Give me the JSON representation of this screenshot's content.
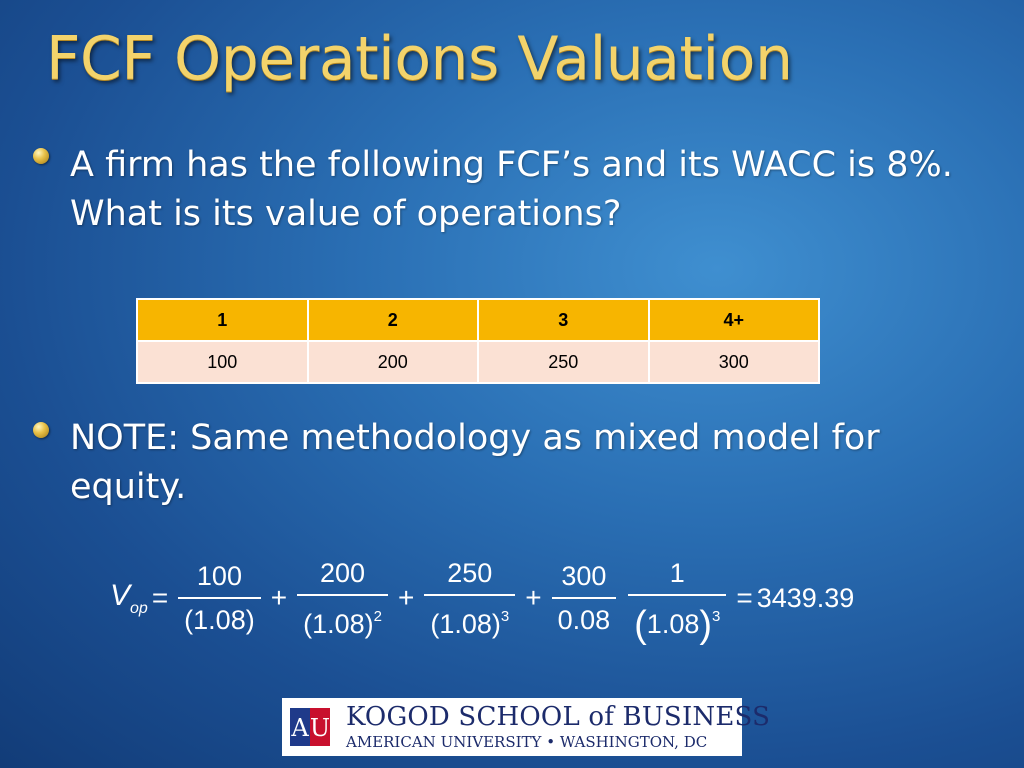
{
  "slide": {
    "title": "FCF Operations Valuation",
    "bullet1": "A firm has the following FCF’s and its WACC is 8%. What is its value of operations?",
    "bullet2": "NOTE: Same methodology as mixed model for equity."
  },
  "table": {
    "headers": [
      "1",
      "2",
      "3",
      "4+"
    ],
    "values": [
      "100",
      "200",
      "250",
      "300"
    ]
  },
  "equation": {
    "lhs_var": "V",
    "lhs_sub": "op",
    "equals": "=",
    "plus": "+",
    "terms": [
      {
        "num": "100",
        "den": "(1.08)",
        "exp": ""
      },
      {
        "num": "200",
        "den": "(1.08)",
        "exp": "2"
      },
      {
        "num": "250",
        "den": "(1.08)",
        "exp": "3"
      },
      {
        "num": "300",
        "den": "0.08",
        "exp": ""
      },
      {
        "num": "1",
        "den_inner": "1.08",
        "exp": "3"
      }
    ],
    "result": "3439.39"
  },
  "logo": {
    "line1": "KOGOD SCHOOL of BUSINESS",
    "line2": "AMERICAN UNIVERSITY • WASHINGTON, DC",
    "mark_text": "AU"
  },
  "colors": {
    "title": "#f3d36b",
    "table_header": "#f7b500",
    "table_row": "#fbe1d4",
    "logo_text": "#1c2b6b",
    "logo_red": "#c8102e",
    "logo_blue": "#1f3a8a"
  }
}
